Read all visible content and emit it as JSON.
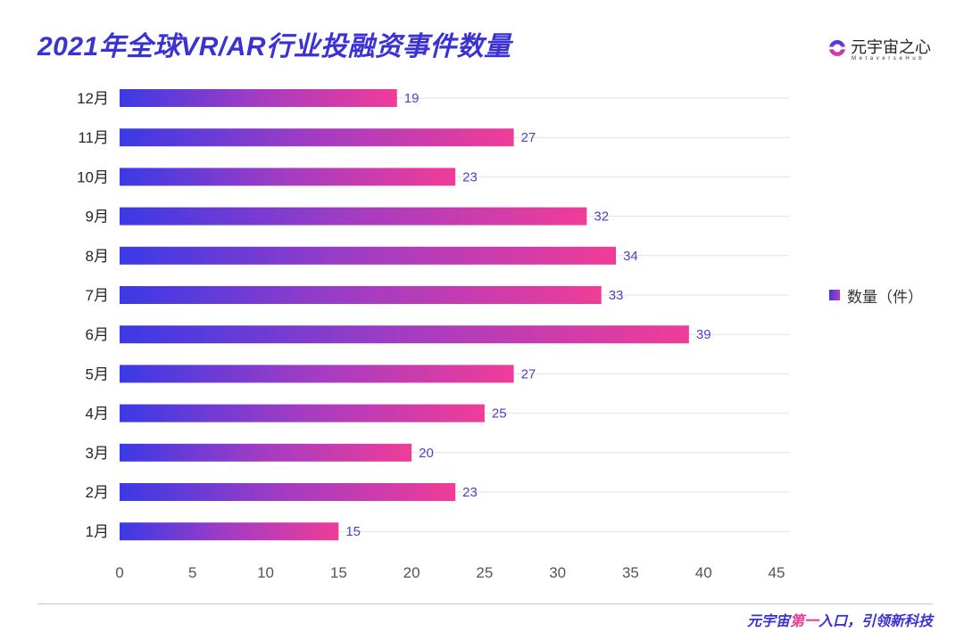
{
  "logo": {
    "name": "元宇宙之心",
    "subtitle": "MetaverseHub"
  },
  "footer": {
    "prefix": "元宇宙",
    "highlight": "第一",
    "suffix": "入口，引领新科技"
  },
  "colors": {
    "title": "#3b32d4",
    "bar_start": "#3a3ae6",
    "bar_mid": "#a43cc2",
    "bar_end": "#f03c98",
    "data_label": "#4b40d2",
    "footer_highlight": "#ee3b96"
  },
  "chart_data": {
    "type": "bar",
    "title": "2021年全球VR/AR行业投融资事件数量",
    "categories": [
      "12月",
      "11月",
      "10月",
      "9月",
      "8月",
      "7月",
      "6月",
      "5月",
      "4月",
      "3月",
      "2月",
      "1月"
    ],
    "series": [
      {
        "name": "数量（件）",
        "values": [
          19,
          27,
          23,
          32,
          34,
          33,
          39,
          27,
          25,
          20,
          23,
          15
        ]
      }
    ],
    "xlim": [
      0,
      45
    ],
    "xticks": [
      0,
      5,
      10,
      15,
      20,
      25,
      30,
      35,
      40,
      45
    ],
    "grid": true
  }
}
